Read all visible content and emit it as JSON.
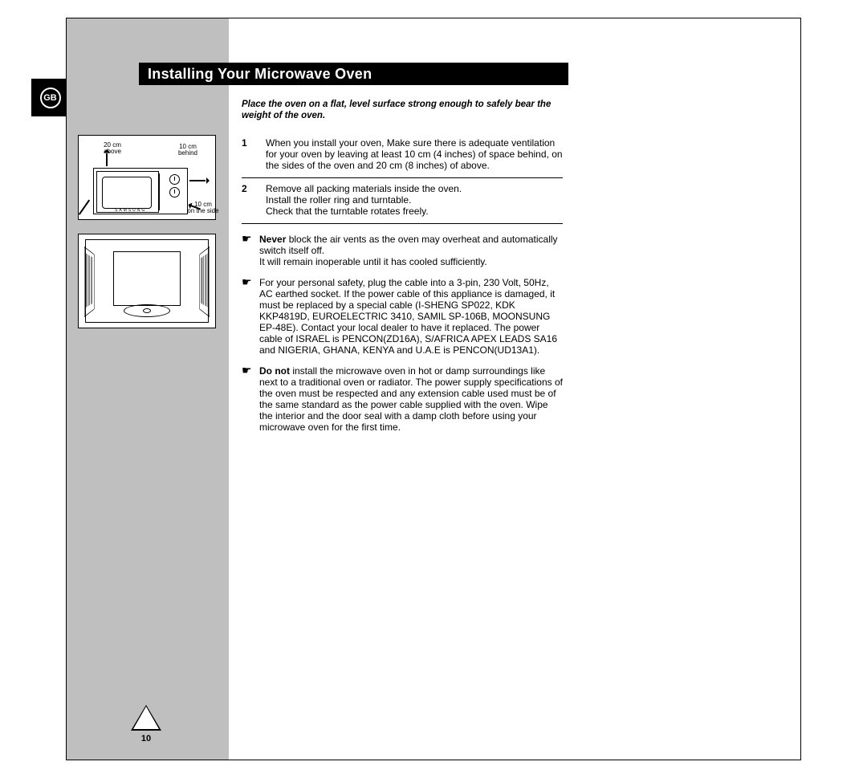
{
  "badge": {
    "label": "GB"
  },
  "title": "Installing Your Microwave Oven",
  "intro": "Place the oven on a flat, level surface strong enough to safely bear the weight of the oven.",
  "diagram1": {
    "label_above": "20 cm\nabove",
    "label_behind": "10 cm\nbehind",
    "label_side": "10 cm\non the side",
    "brand": "SAMSUNG"
  },
  "steps": [
    {
      "num": "1",
      "text": "When you install your oven, Make sure there is adequate ventilation for your oven by leaving at least 10 cm (4 inches) of space behind, on the sides of the oven and 20 cm (8 inches) of above."
    },
    {
      "num": "2",
      "text": "Remove all packing materials inside the oven.\nInstall the roller ring and turntable.\nCheck that the turntable rotates freely."
    }
  ],
  "notes": [
    {
      "bold": "Never",
      "text": " block the air vents as the oven may overheat and automatically switch itself off.\nIt will remain inoperable until it has cooled sufficiently."
    },
    {
      "bold": "",
      "text": "For your personal safety, plug the cable into a 3-pin, 230 Volt, 50Hz, AC earthed socket. If the power cable of this appliance is damaged, it must be replaced by a special cable (I-SHENG SP022, KDK KKP4819D, EUROELECTRIC 3410, SAMIL SP-106B, MOONSUNG EP-48E). Contact your local dealer to have it replaced. The power cable of ISRAEL is PENCON(ZD16A), S/AFRICA APEX LEADS SA16 and NIGERIA, GHANA, KENYA and U.A.E is PENCON(UD13A1)."
    },
    {
      "bold": "Do not",
      "text": " install the microwave oven in hot or damp surroundings like next to a traditional oven or radiator. The power supply specifications of the oven must be respected and any extension cable used must be of the same standard as the power cable supplied with the oven. Wipe the interior and the door seal with a damp cloth before using your microwave oven for the first time."
    }
  ],
  "page_number": "10",
  "pointer_glyph": "☛",
  "colors": {
    "sidebar": "#bfbfbf",
    "title_bg": "#000000",
    "title_fg": "#ffffff",
    "text": "#000000",
    "page_bg": "#ffffff"
  }
}
